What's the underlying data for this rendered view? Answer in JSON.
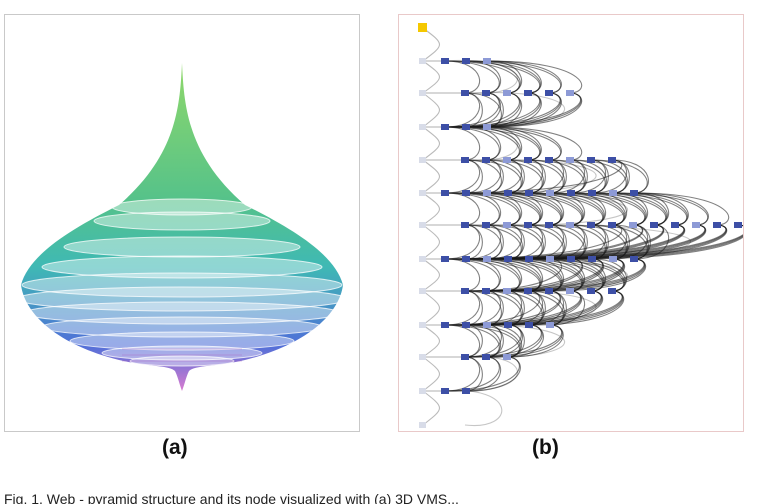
{
  "figure": {
    "panel_a": {
      "label": "(a)"
    },
    "panel_b": {
      "label": "(b)"
    },
    "caption": "Fig. 1. Web - pyramid structure and its node visualized with (a) 3D VMS..."
  },
  "colors": {
    "top": "#8fd86a",
    "mid": "#3fb9b4",
    "low": "#4f6fd8",
    "tip": "#d97bd0",
    "node": "#3d4fa6",
    "root": "#f5c800",
    "edge": "#1a1a1a"
  }
}
